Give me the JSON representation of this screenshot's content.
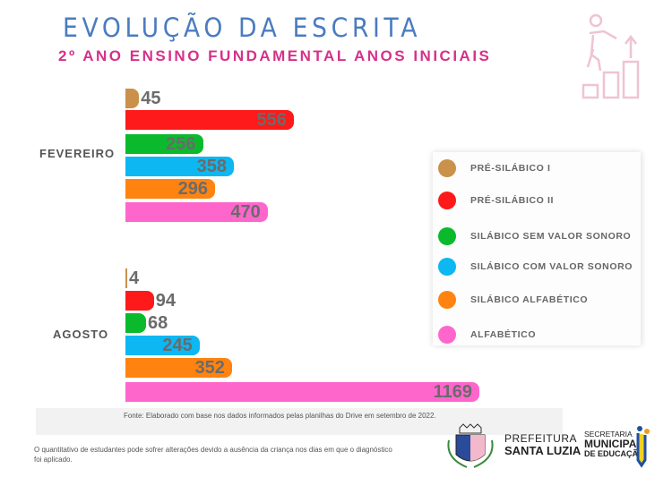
{
  "title": "EVOLUÇÃO  DA ESCRITA",
  "subtitle": "2º ANO ENSINO FUNDAMENTAL  ANOS INICIAIS",
  "chart_data": {
    "type": "bar",
    "orientation": "horizontal",
    "categories": [
      "FEVEREIRO",
      "AGOSTO"
    ],
    "series": [
      {
        "name": "PRÉ-SILÁBICO I",
        "color": "#c9914a",
        "values": [
          45,
          4
        ]
      },
      {
        "name": "PRÉ-SILÁBICO II",
        "color": "#fe1a1a",
        "values": [
          556,
          94
        ]
      },
      {
        "name": "SILÁBICO SEM VALOR SONORO",
        "color": "#0bba2c",
        "values": [
          256,
          68
        ]
      },
      {
        "name": "SILÁBICO COM VALOR SONORO",
        "color": "#0cb7f2",
        "values": [
          358,
          245
        ]
      },
      {
        "name": "SILÁBICO ALFABÉTICO",
        "color": "#ff8310",
        "values": [
          296,
          352
        ]
      },
      {
        "name": "ALFABÉTICO",
        "color": "#ff66cc",
        "values": [
          470,
          1169
        ]
      }
    ],
    "legend": "right"
  },
  "source": "Fonte: Elaborado com base nos dados informados pelas planilhas do Drive em  setembro de 2022.",
  "note": "O quantitativo de estudantes pode sofrer alterações devido a ausência da criança nos dias em que o diagnóstico foi aplicado.",
  "logos": {
    "prefeitura_line1": "PREFEITURA",
    "prefeitura_line2": "SANTA LUZIA",
    "secretaria_line1": "SECRETARIA",
    "secretaria_line2": "MUNICIPAL",
    "secretaria_line3": "DE EDUCAÇÃO"
  }
}
